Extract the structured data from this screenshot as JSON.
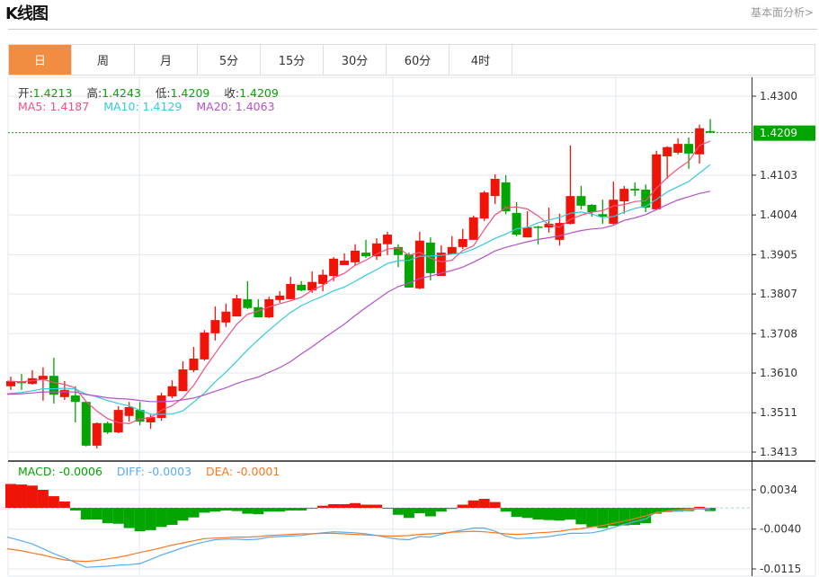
{
  "header": {
    "title": "K线图",
    "more_link": "基本面分析>"
  },
  "tabs": [
    {
      "label": "日",
      "active": true
    },
    {
      "label": "周"
    },
    {
      "label": "月"
    },
    {
      "label": "5分"
    },
    {
      "label": "15分"
    },
    {
      "label": "30分"
    },
    {
      "label": "60分"
    },
    {
      "label": "4时"
    }
  ],
  "ohlc_legend": {
    "open_label": "开:",
    "open": "1.4213",
    "high_label": "高:",
    "high": "1.4243",
    "low_label": "低:",
    "low": "1.4209",
    "close_label": "收:",
    "close": "1.4209"
  },
  "ma_legend": {
    "ma5": "MA5: 1.4187",
    "ma10": "MA10: 1.4129",
    "ma20": "MA20: 1.4063"
  },
  "macd_legend": {
    "macd": "MACD: -0.0006",
    "diff": "DIFF: -0.0003",
    "dea": "DEA: -0.0001"
  },
  "colors": {
    "up": "#f01408",
    "down": "#02a502",
    "ma5": "#f0517f",
    "ma10": "#35c8e0",
    "ma20": "#b552c8",
    "diff": "#5aacf2",
    "dea": "#f87722",
    "current": "#02a502"
  },
  "chart_data": {
    "type": "candlestick",
    "price_axis": {
      "range": [
        1.3413,
        1.43
      ],
      "ticks": [
        "1.4300",
        "1.4103",
        "1.4004",
        "1.3905",
        "1.3807",
        "1.3708",
        "1.3610",
        "1.3511",
        "1.3413"
      ]
    },
    "current_price": "1.4209",
    "candles": [
      [
        1.3577,
        1.3601,
        1.3568,
        1.359
      ],
      [
        1.3588,
        1.3608,
        1.3568,
        1.3586
      ],
      [
        1.3583,
        1.3617,
        1.3581,
        1.3597
      ],
      [
        1.3594,
        1.3624,
        1.3541,
        1.3603
      ],
      [
        1.3603,
        1.3648,
        1.3534,
        1.3556
      ],
      [
        1.355,
        1.359,
        1.3543,
        1.3568
      ],
      [
        1.3554,
        1.3577,
        1.3487,
        1.3538
      ],
      [
        1.3538,
        1.354,
        1.3427,
        1.3429
      ],
      [
        1.3429,
        1.3487,
        1.3422,
        1.3485
      ],
      [
        1.3485,
        1.3489,
        1.3458,
        1.3462
      ],
      [
        1.3462,
        1.3527,
        1.346,
        1.3518
      ],
      [
        1.3503,
        1.3538,
        1.3489,
        1.3525
      ],
      [
        1.3518,
        1.3538,
        1.348,
        1.3489
      ],
      [
        1.3487,
        1.3507,
        1.3471,
        1.35
      ],
      [
        1.3498,
        1.3561,
        1.3491,
        1.3554
      ],
      [
        1.3552,
        1.3592,
        1.3547,
        1.3577
      ],
      [
        1.3565,
        1.3639,
        1.3565,
        1.3619
      ],
      [
        1.3617,
        1.3675,
        1.3612,
        1.3646
      ],
      [
        1.3644,
        1.3717,
        1.3641,
        1.3711
      ],
      [
        1.3709,
        1.3776,
        1.3691,
        1.3742
      ],
      [
        1.3736,
        1.3783,
        1.3725,
        1.3763
      ],
      [
        1.3751,
        1.3805,
        1.3751,
        1.3796
      ],
      [
        1.3794,
        1.3839,
        1.3769,
        1.3772
      ],
      [
        1.3774,
        1.3794,
        1.3749,
        1.3749
      ],
      [
        1.3749,
        1.38,
        1.3747,
        1.3794
      ],
      [
        1.3792,
        1.3814,
        1.3785,
        1.3803
      ],
      [
        1.3794,
        1.385,
        1.3794,
        1.3832
      ],
      [
        1.383,
        1.3839,
        1.3814,
        1.3816
      ],
      [
        1.3816,
        1.3863,
        1.381,
        1.3837
      ],
      [
        1.3832,
        1.3868,
        1.3814,
        1.3855
      ],
      [
        1.3852,
        1.3899,
        1.3839,
        1.3895
      ],
      [
        1.3879,
        1.3908,
        1.3879,
        1.389
      ],
      [
        1.3886,
        1.3931,
        1.3879,
        1.3915
      ],
      [
        1.391,
        1.3942,
        1.3897,
        1.3901
      ],
      [
        1.3901,
        1.3946,
        1.3892,
        1.3933
      ],
      [
        1.3931,
        1.3962,
        1.3904,
        1.3955
      ],
      [
        1.3924,
        1.3931,
        1.3874,
        1.3904
      ],
      [
        1.3906,
        1.391,
        1.3823,
        1.3823
      ],
      [
        1.3821,
        1.3962,
        1.3819,
        1.394
      ],
      [
        1.3935,
        1.3948,
        1.3841,
        1.3859
      ],
      [
        1.3852,
        1.3928,
        1.3852,
        1.391
      ],
      [
        1.3906,
        1.3951,
        1.3906,
        1.3924
      ],
      [
        1.3924,
        1.3969,
        1.3919,
        1.3944
      ],
      [
        1.3942,
        1.4002,
        1.3942,
        1.3998
      ],
      [
        1.3995,
        1.4064,
        1.3989,
        1.406
      ],
      [
        1.4051,
        1.4105,
        1.4031,
        1.4094
      ],
      [
        1.4085,
        1.4103,
        1.4006,
        1.4013
      ],
      [
        1.4009,
        1.4036,
        1.3951,
        1.3955
      ],
      [
        1.3948,
        1.4013,
        1.3948,
        1.3973
      ],
      [
        1.3975,
        1.3977,
        1.393,
        1.3973
      ],
      [
        1.3973,
        1.4022,
        1.396,
        1.3982
      ],
      [
        1.3942,
        1.4007,
        1.3928,
        1.3984
      ],
      [
        1.3982,
        1.4177,
        1.398,
        1.4051
      ],
      [
        1.4051,
        1.4076,
        1.4018,
        1.4027
      ],
      [
        1.4029,
        1.4031,
        1.4,
        1.4011
      ],
      [
        1.4006,
        1.4042,
        1.3982,
        1.4
      ],
      [
        1.3982,
        1.4087,
        1.398,
        1.4042
      ],
      [
        1.4038,
        1.4076,
        1.4007,
        1.4069
      ],
      [
        1.4069,
        1.4085,
        1.4051,
        1.4065
      ],
      [
        1.4067,
        1.408,
        1.4011,
        1.4022
      ],
      [
        1.4018,
        1.4164,
        1.4018,
        1.4155
      ],
      [
        1.415,
        1.4175,
        1.4094,
        1.4173
      ],
      [
        1.4159,
        1.4195,
        1.4155,
        1.4181
      ],
      [
        1.4181,
        1.4197,
        1.4119,
        1.4157
      ],
      [
        1.4155,
        1.4229,
        1.4132,
        1.422
      ],
      [
        1.4213,
        1.4243,
        1.4209,
        1.4209
      ]
    ],
    "macd_axis": {
      "range": [
        -0.0115,
        0.0034
      ],
      "ticks": [
        "0.0034",
        "-0.0040",
        "-0.0115"
      ]
    },
    "macd_hist": [
      0.0045,
      0.0044,
      0.0042,
      0.0034,
      0.0022,
      0.0012,
      -0.0005,
      -0.0022,
      -0.0022,
      -0.0029,
      -0.003,
      -0.0038,
      -0.0044,
      -0.0042,
      -0.0036,
      -0.0032,
      -0.0024,
      -0.0018,
      -0.0009,
      -0.0007,
      -0.0005,
      -0.0006,
      -0.0011,
      -0.0012,
      -0.0007,
      -0.0007,
      -0.0005,
      -0.0005,
      -0.0001,
      0.0004,
      0.0007,
      0.0007,
      0.0009,
      0.0006,
      0.0006,
      -0.0001,
      -0.0013,
      -0.0019,
      -0.001,
      -0.0016,
      -0.0007,
      -0.0002,
      0.0006,
      0.0014,
      0.0017,
      0.0011,
      -0.0007,
      -0.0017,
      -0.0019,
      -0.0022,
      -0.0023,
      -0.0024,
      -0.0022,
      -0.0031,
      -0.0036,
      -0.0038,
      -0.0034,
      -0.0033,
      -0.0032,
      -0.0029,
      -0.0011,
      -0.0008,
      -0.0007,
      -0.0006,
      0.0002,
      -0.0006
    ],
    "diff": [
      -0.0055,
      -0.0062,
      -0.0068,
      -0.0077,
      -0.0086,
      -0.0094,
      -0.0103,
      -0.0112,
      -0.0111,
      -0.011,
      -0.0108,
      -0.0107,
      -0.0105,
      -0.0097,
      -0.0089,
      -0.0082,
      -0.0075,
      -0.0069,
      -0.0064,
      -0.006,
      -0.0059,
      -0.0059,
      -0.006,
      -0.0059,
      -0.0055,
      -0.0054,
      -0.0053,
      -0.0052,
      -0.0049,
      -0.0047,
      -0.0045,
      -0.0046,
      -0.0047,
      -0.0049,
      -0.0052,
      -0.0056,
      -0.0059,
      -0.006,
      -0.0054,
      -0.0055,
      -0.005,
      -0.0045,
      -0.0042,
      -0.0038,
      -0.0038,
      -0.0044,
      -0.0053,
      -0.0058,
      -0.0057,
      -0.0056,
      -0.0054,
      -0.0051,
      -0.0048,
      -0.0048,
      -0.0047,
      -0.0043,
      -0.0037,
      -0.0031,
      -0.0026,
      -0.0021,
      -0.0008,
      -0.0007,
      -0.0006,
      -0.0004,
      -0.0002,
      -0.0003
    ],
    "dea": [
      -0.0077,
      -0.0081,
      -0.0085,
      -0.0089,
      -0.0094,
      -0.0098,
      -0.01,
      -0.0101,
      -0.0099,
      -0.0096,
      -0.0093,
      -0.0089,
      -0.0084,
      -0.008,
      -0.0075,
      -0.007,
      -0.0066,
      -0.0062,
      -0.0058,
      -0.0057,
      -0.0056,
      -0.0055,
      -0.0055,
      -0.0054,
      -0.0052,
      -0.0051,
      -0.005,
      -0.0049,
      -0.0049,
      -0.0048,
      -0.0048,
      -0.0049,
      -0.005,
      -0.0051,
      -0.0052,
      -0.0053,
      -0.0053,
      -0.0052,
      -0.005,
      -0.0049,
      -0.0048,
      -0.0046,
      -0.0045,
      -0.0044,
      -0.0045,
      -0.0047,
      -0.0049,
      -0.005,
      -0.0049,
      -0.0047,
      -0.0046,
      -0.0044,
      -0.0041,
      -0.0039,
      -0.0036,
      -0.0033,
      -0.0029,
      -0.0025,
      -0.002,
      -0.0015,
      -0.0009,
      -0.0006,
      -0.0004,
      -0.0002,
      -0.0001,
      -0.0001
    ]
  }
}
